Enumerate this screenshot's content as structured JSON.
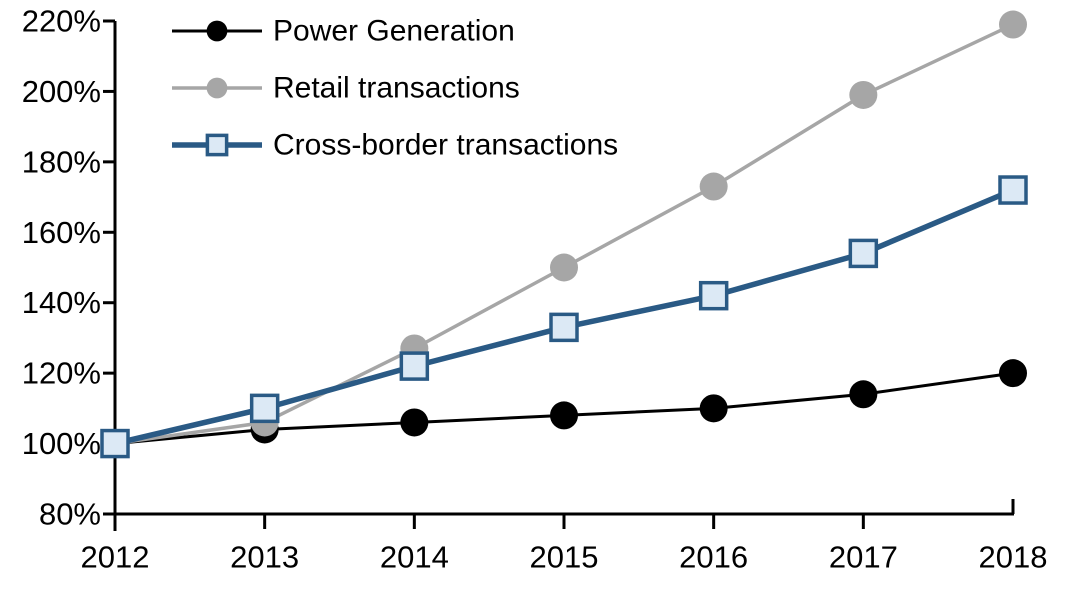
{
  "chart_data": {
    "type": "line",
    "title": "",
    "categories": [
      "2012",
      "2013",
      "2014",
      "2015",
      "2016",
      "2017",
      "2018"
    ],
    "series": [
      {
        "name": "Power Generation",
        "values": [
          100,
          104,
          106,
          108,
          110,
          114,
          120
        ],
        "color": "#000000",
        "marker": "circle",
        "marker_fill": "#000000",
        "line_width": 3
      },
      {
        "name": "Retail transactions",
        "values": [
          100,
          106,
          127,
          150,
          173,
          199,
          219
        ],
        "color": "#A6A6A6",
        "marker": "circle",
        "marker_fill": "#A6A6A6",
        "line_width": 3.5
      },
      {
        "name": "Cross-border transactions",
        "values": [
          100,
          110,
          122,
          133,
          142,
          154,
          172
        ],
        "color": "#2A5A85",
        "marker": "square",
        "marker_fill": "#DCE9F5",
        "line_width": 5.5
      }
    ],
    "y_axis": {
      "min": 80,
      "max": 220,
      "step": 20,
      "tick_labels": [
        "80%",
        "100%",
        "120%",
        "140%",
        "160%",
        "180%",
        "200%",
        "220%"
      ]
    },
    "x_axis": {
      "tick_labels": [
        "2012",
        "2013",
        "2014",
        "2015",
        "2016",
        "2017",
        "2018"
      ]
    },
    "legend": {
      "position": "top-left",
      "entries": [
        "Power Generation",
        "Retail transactions",
        "Cross-border transactions"
      ]
    },
    "grid": false,
    "axis_color": "#000000"
  }
}
